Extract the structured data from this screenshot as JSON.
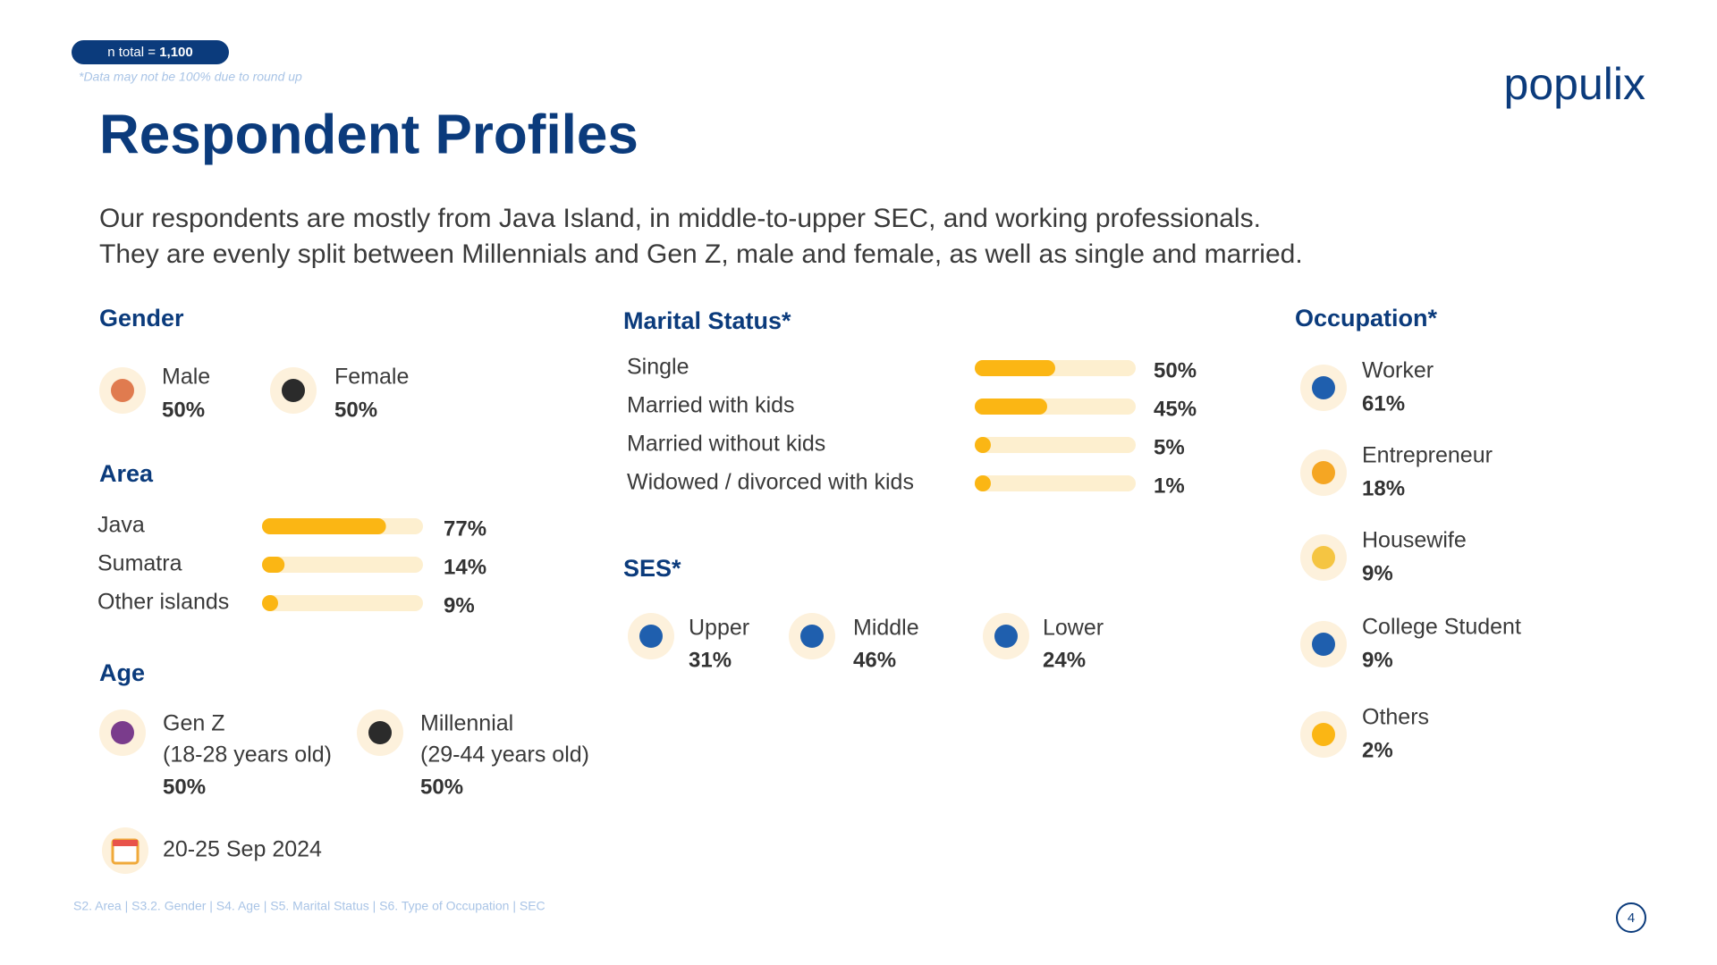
{
  "header": {
    "n_total_label": "n total =",
    "n_total_value": "1,100",
    "note": "*Data may not be 100% due to round up",
    "logo": "populix",
    "title": "Respondent Profiles",
    "subtitle": [
      "Our respondents are mostly from Java Island, in middle-to-upper SEC, and working professionals.",
      "They are evenly split between Millennials and Gen Z, male and female, as well as single and married."
    ]
  },
  "gender": {
    "heading": "Gender",
    "items": [
      {
        "label": "Male",
        "value": "50%"
      },
      {
        "label": "Female",
        "value": "50%"
      }
    ]
  },
  "area": {
    "heading": "Area",
    "items": [
      {
        "label": "Java",
        "value": 77,
        "value_label": "77%"
      },
      {
        "label": "Sumatra",
        "value": 14,
        "value_label": "14%"
      },
      {
        "label": "Other islands",
        "value": 9,
        "value_label": "9%"
      }
    ]
  },
  "age": {
    "heading": "Age",
    "items": [
      {
        "label": "Gen Z",
        "range": "(18-28 years old)",
        "value": "50%"
      },
      {
        "label": "Millennial",
        "range": "(29-44 years old)",
        "value": "50%"
      }
    ]
  },
  "date": "20-25 Sep 2024",
  "marital_status": {
    "heading": "Marital Status*",
    "items": [
      {
        "label": "Single",
        "value": 50,
        "value_label": "50%"
      },
      {
        "label": "Married with kids",
        "value": 45,
        "value_label": "45%"
      },
      {
        "label": "Married without kids",
        "value": 5,
        "value_label": "5%"
      },
      {
        "label": "Widowed / divorced with kids",
        "value": 1,
        "value_label": "1%"
      }
    ]
  },
  "ses": {
    "heading": "SES*",
    "items": [
      {
        "label": "Upper",
        "value": "31%"
      },
      {
        "label": "Middle",
        "value": "46%"
      },
      {
        "label": "Lower",
        "value": "24%"
      }
    ]
  },
  "occupation": {
    "heading": "Occupation*",
    "items": [
      {
        "label": "Worker",
        "value": "61%"
      },
      {
        "label": "Entrepreneur",
        "value": "18%"
      },
      {
        "label": "Housewife",
        "value": "9%"
      },
      {
        "label": "College Student",
        "value": "9%"
      },
      {
        "label": "Others",
        "value": "2%"
      }
    ]
  },
  "source": "S2. Area | S3.2. Gender | S4. Age | S5. Marital Status | S6. Type of Occupation | SEC",
  "page_number": "4"
}
